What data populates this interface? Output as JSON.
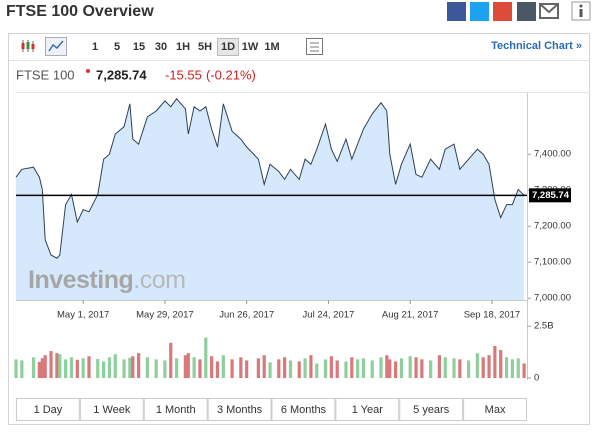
{
  "header": {
    "title": "FTSE 100 Overview"
  },
  "toolbar": {
    "intervals": [
      "1",
      "5",
      "15",
      "30",
      "1H",
      "5H",
      "1D",
      "1W",
      "1M"
    ],
    "active_interval": "1D",
    "technical_link": "Technical Chart »"
  },
  "quote": {
    "price": "7,285.74",
    "change": "-15.55",
    "change_percent": "(-0.21%)"
  },
  "watermark": {
    "brand": "Investing",
    "suffix": ".com"
  },
  "chart_data": {
    "type": "line",
    "x": [
      "2017-04-08",
      "2017-04-10",
      "2017-04-14",
      "2017-04-16",
      "2017-04-17",
      "2017-04-18",
      "2017-04-20",
      "2017-04-22",
      "2017-04-23",
      "2017-04-25",
      "2017-04-27",
      "2017-04-29",
      "2017-05-01",
      "2017-05-03",
      "2017-05-06",
      "2017-05-08",
      "2017-05-10",
      "2017-05-12",
      "2017-05-15",
      "2017-05-17",
      "2017-05-18",
      "2017-05-20",
      "2017-05-23",
      "2017-05-26",
      "2017-05-29",
      "2017-05-31",
      "2017-06-02",
      "2017-06-05",
      "2017-06-06",
      "2017-06-08",
      "2017-06-10",
      "2017-06-12",
      "2017-06-14",
      "2017-06-16",
      "2017-06-18",
      "2017-06-21",
      "2017-06-24",
      "2017-06-26",
      "2017-06-30",
      "2017-07-02",
      "2017-07-04",
      "2017-07-07",
      "2017-07-09",
      "2017-07-11",
      "2017-07-14",
      "2017-07-16",
      "2017-07-18",
      "2017-07-20",
      "2017-07-23",
      "2017-07-25",
      "2017-07-27",
      "2017-07-30",
      "2017-08-01",
      "2017-08-03",
      "2017-08-05",
      "2017-08-08",
      "2017-08-11",
      "2017-08-13",
      "2017-08-14",
      "2017-08-16",
      "2017-08-18",
      "2017-08-21",
      "2017-08-23",
      "2017-08-25",
      "2017-08-28",
      "2017-08-31",
      "2017-09-02",
      "2017-09-05",
      "2017-09-07",
      "2017-09-10",
      "2017-09-13",
      "2017-09-15",
      "2017-09-17",
      "2017-09-19",
      "2017-09-21",
      "2017-09-23",
      "2017-09-25",
      "2017-09-27",
      "2017-09-29"
    ],
    "series": [
      {
        "name": "FTSE 100",
        "color": "#2f4055",
        "fill": "#d6e9fc",
        "values": [
          7336,
          7358,
          7364,
          7336,
          7302,
          7162,
          7120,
          7111,
          7120,
          7260,
          7288,
          7212,
          7246,
          7240,
          7288,
          7386,
          7400,
          7456,
          7476,
          7540,
          7442,
          7428,
          7504,
          7520,
          7548,
          7532,
          7554,
          7526,
          7456,
          7532,
          7520,
          7532,
          7470,
          7420,
          7540,
          7464,
          7442,
          7420,
          7386,
          7316,
          7372,
          7352,
          7330,
          7358,
          7330,
          7386,
          7372,
          7414,
          7484,
          7414,
          7380,
          7442,
          7386,
          7428,
          7470,
          7512,
          7543,
          7520,
          7400,
          7316,
          7372,
          7428,
          7344,
          7336,
          7386,
          7358,
          7414,
          7428,
          7358,
          7386,
          7414,
          7400,
          7372,
          7274,
          7224,
          7260,
          7260,
          7302,
          7285.74
        ]
      }
    ],
    "xlim": [
      "2017-04-08",
      "2017-09-30"
    ],
    "xticks": [
      {
        "value": "2017-05-01",
        "label": "May 1, 2017"
      },
      {
        "value": "2017-05-29",
        "label": "May 29, 2017"
      },
      {
        "value": "2017-06-26",
        "label": "Jun 26, 2017"
      },
      {
        "value": "2017-07-24",
        "label": "Jul 24, 2017"
      },
      {
        "value": "2017-08-21",
        "label": "Aug 21, 2017"
      },
      {
        "value": "2017-09-18",
        "label": "Sep 18, 2017"
      }
    ],
    "ylim": [
      6995,
      7570
    ],
    "yticks": [
      {
        "value": 7000,
        "label": "7,000.00"
      },
      {
        "value": 7100,
        "label": "7,100.00"
      },
      {
        "value": 7200,
        "label": "7,200.00"
      },
      {
        "value": 7300,
        "label": "7,300.00"
      },
      {
        "value": 7400,
        "label": "7,400.00"
      }
    ],
    "price_line": {
      "value": 7285.74,
      "label": "7,285.74"
    },
    "volume": {
      "values": [
        900000000,
        850000000,
        1000000000,
        780000000,
        950000000,
        1100000000,
        1300000000,
        1200000000,
        1150000000,
        900000000,
        1000000000,
        880000000,
        950000000,
        1050000000,
        920000000,
        800000000,
        1000000000,
        1150000000,
        900000000,
        980000000,
        1050000000,
        1200000000,
        1000000000,
        900000000,
        850000000,
        1700000000,
        950000000,
        1100000000,
        1200000000,
        1000000000,
        900000000,
        1950000000,
        1050000000,
        800000000,
        1100000000,
        900000000,
        1000000000,
        850000000,
        950000000,
        1100000000,
        750000000,
        900000000,
        1000000000,
        850000000,
        800000000,
        950000000,
        1100000000,
        700000000,
        900000000,
        1050000000,
        850000000,
        800000000,
        1000000000,
        900000000,
        950000000,
        850000000,
        1000000000,
        1100000000,
        900000000,
        800000000,
        950000000,
        1050000000,
        1000000000,
        900000000,
        850000000,
        1100000000,
        1000000000,
        950000000,
        900000000,
        850000000,
        1200000000,
        1000000000,
        1100000000,
        1550000000,
        1350000000,
        1000000000,
        900000000,
        950000000,
        700000000
      ],
      "ylim": [
        0,
        2800000000
      ],
      "yticks": [
        0,
        {
          "value": 2500000000,
          "label": "2.5B"
        }
      ],
      "up_color": "#8fcf9e",
      "down_color": "#d9787a"
    }
  },
  "periods": [
    "1 Day",
    "1 Week",
    "1 Month",
    "3 Months",
    "6 Months",
    "1 Year",
    "5 years",
    "Max"
  ]
}
